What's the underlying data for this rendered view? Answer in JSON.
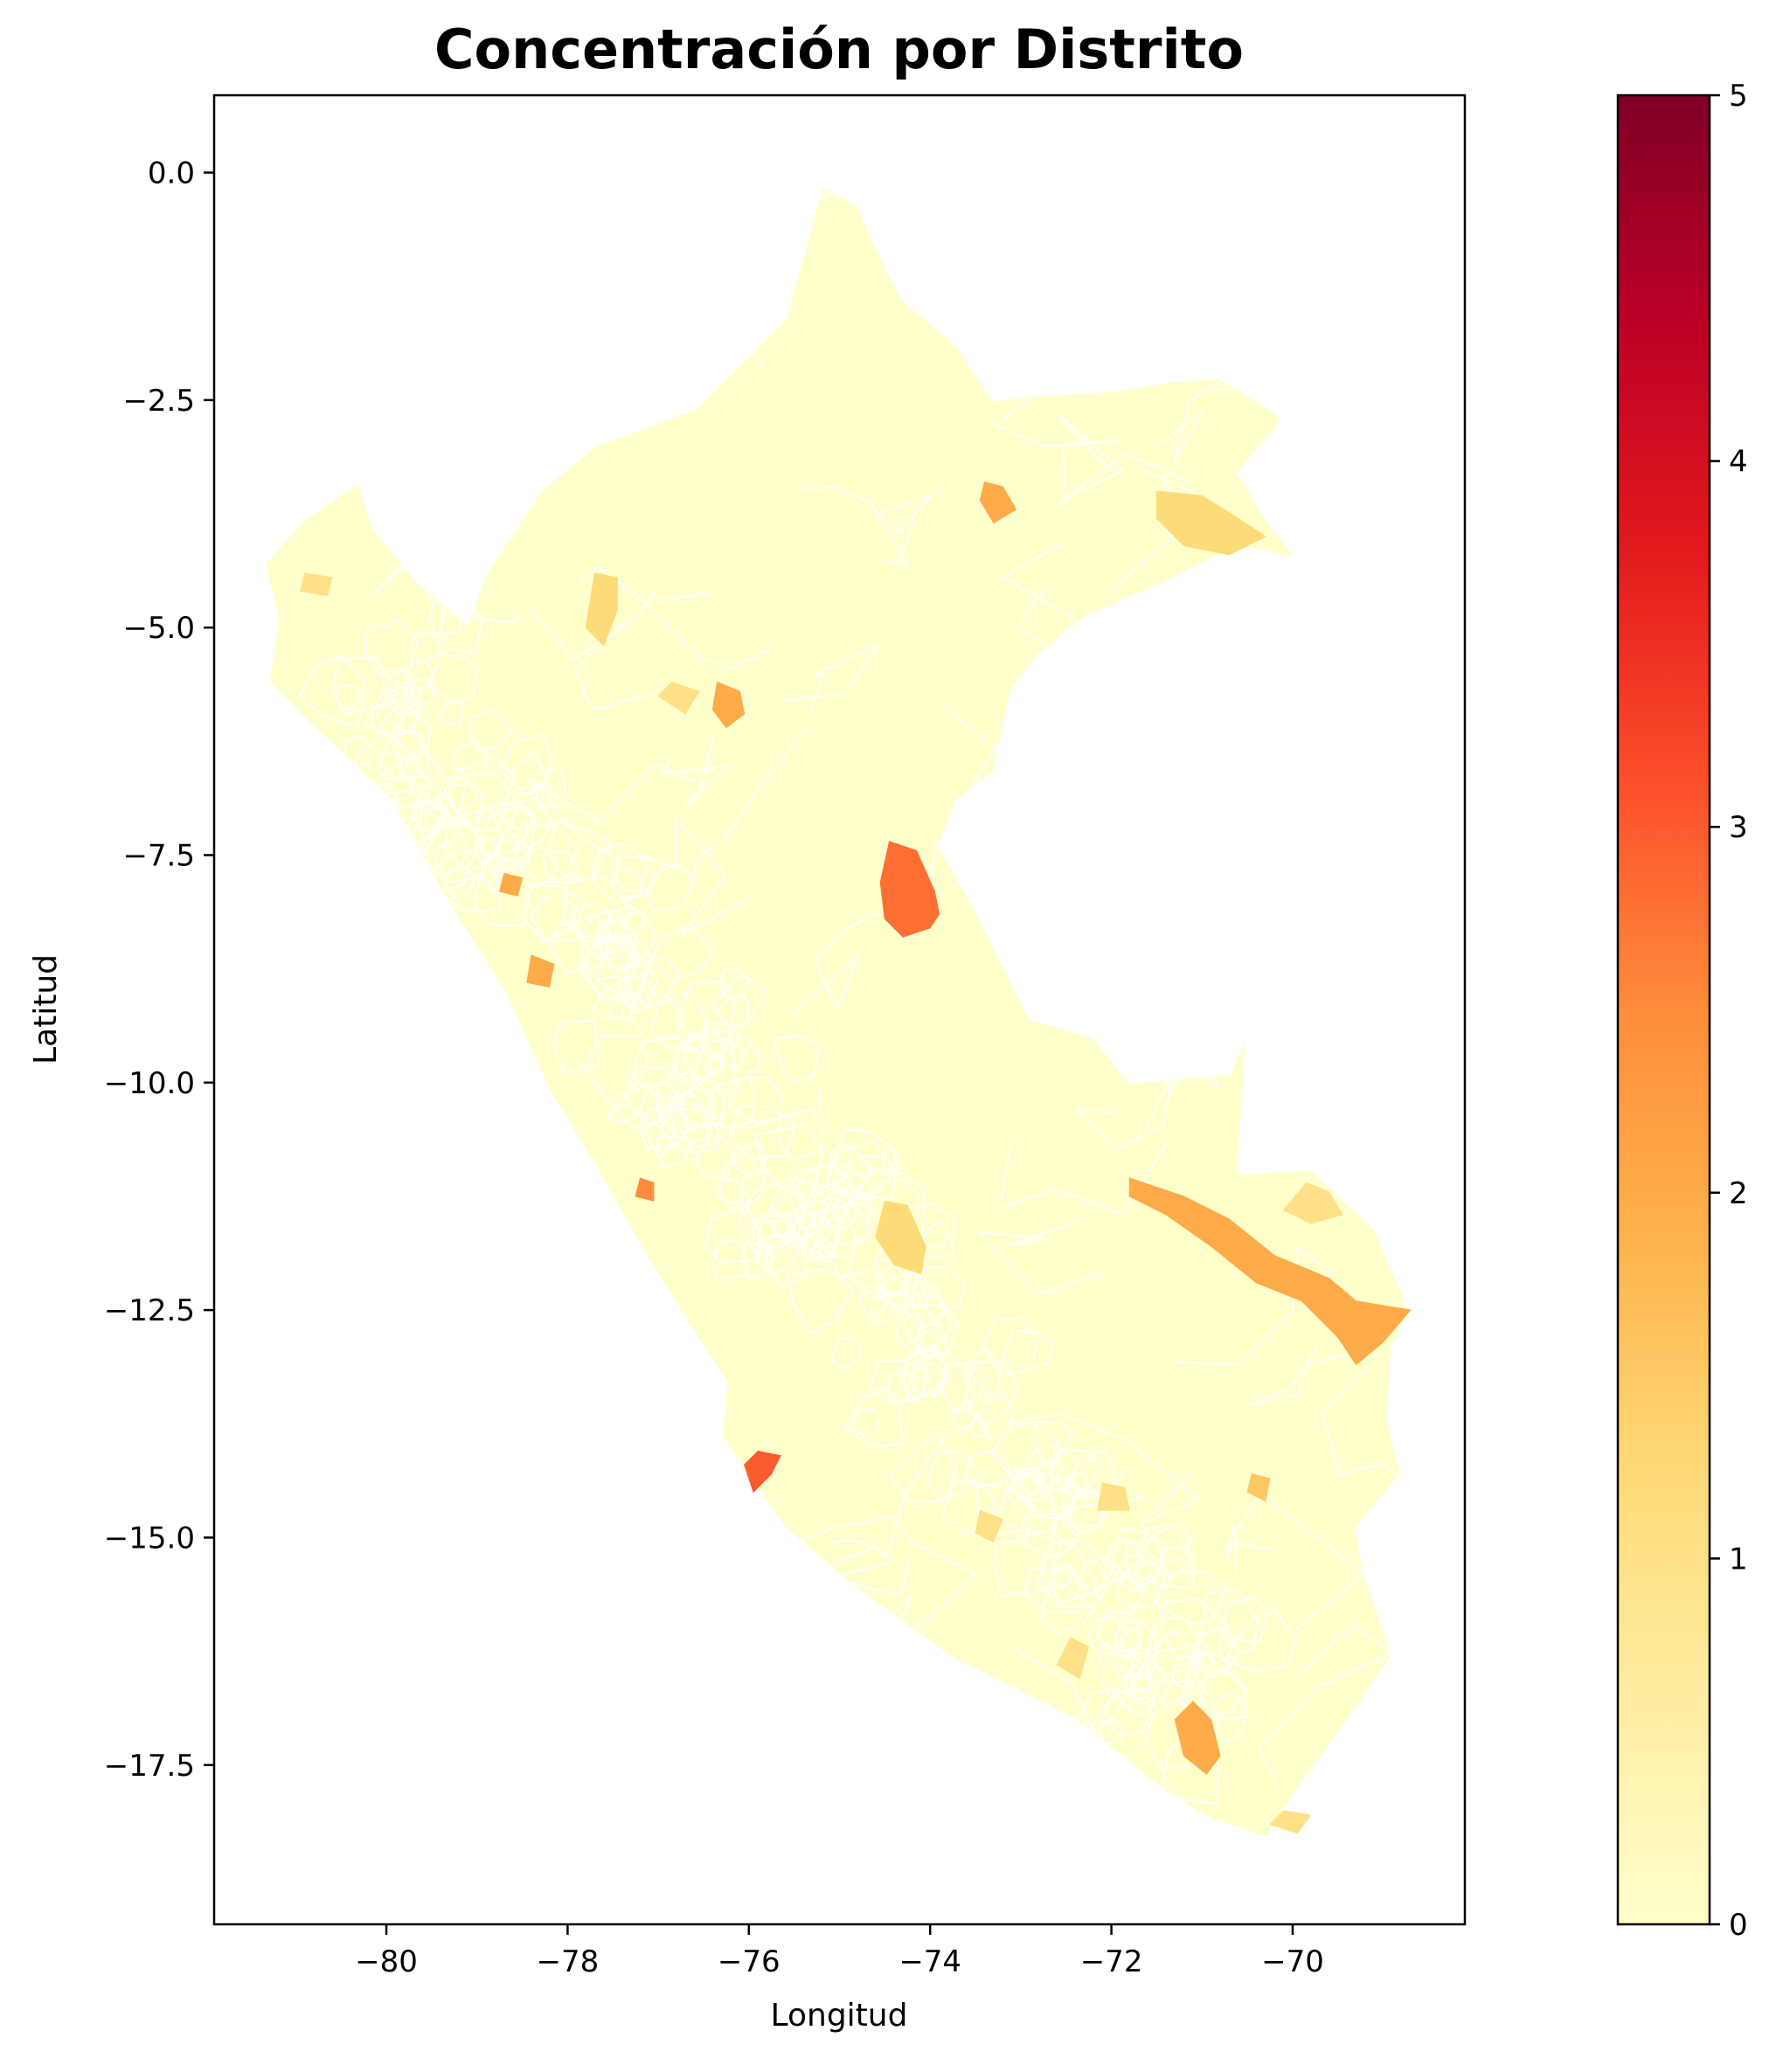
{
  "title": "Concentración por Distrito",
  "xlabel": "Longitud",
  "ylabel": "Latitud",
  "x_ticks": [
    {
      "value": -80,
      "label": "−80"
    },
    {
      "value": -78,
      "label": "−78"
    },
    {
      "value": -76,
      "label": "−76"
    },
    {
      "value": -74,
      "label": "−74"
    },
    {
      "value": -72,
      "label": "−72"
    },
    {
      "value": -70,
      "label": "−70"
    }
  ],
  "y_ticks": [
    {
      "value": 0.0,
      "label": "0.0"
    },
    {
      "value": -2.5,
      "label": "−2.5"
    },
    {
      "value": -5.0,
      "label": "−5.0"
    },
    {
      "value": -7.5,
      "label": "−7.5"
    },
    {
      "value": -10.0,
      "label": "−10.0"
    },
    {
      "value": -12.5,
      "label": "−12.5"
    },
    {
      "value": -15.0,
      "label": "−15.0"
    },
    {
      "value": -17.5,
      "label": "−17.5"
    }
  ],
  "colorbar": {
    "colormap": "YlOrRd",
    "range": [
      0,
      5
    ],
    "ticks": [
      {
        "value": 0,
        "label": "0"
      },
      {
        "value": 1,
        "label": "1"
      },
      {
        "value": 2,
        "label": "2"
      },
      {
        "value": 3,
        "label": "3"
      },
      {
        "value": 4,
        "label": "4"
      },
      {
        "value": 5,
        "label": "5"
      }
    ],
    "stops": [
      "#ffffcc",
      "#ffeda0",
      "#fed976",
      "#feb24c",
      "#fd8d3c",
      "#fc4e2a",
      "#e31a1c",
      "#bd0026",
      "#800026"
    ]
  },
  "map": {
    "base_color": "#ffffcc",
    "border_color": "#ffffff",
    "country_outline": [
      [
        -75.2,
        -0.15
      ],
      [
        -74.8,
        -0.35
      ],
      [
        -74.6,
        -0.8
      ],
      [
        -74.3,
        -1.4
      ],
      [
        -73.7,
        -1.9
      ],
      [
        -73.3,
        -2.5
      ],
      [
        -72.9,
        -2.45
      ],
      [
        -72.0,
        -2.4
      ],
      [
        -71.4,
        -2.3
      ],
      [
        -70.8,
        -2.25
      ],
      [
        -70.1,
        -2.7
      ],
      [
        -70.6,
        -3.3
      ],
      [
        -70.3,
        -3.8
      ],
      [
        -69.95,
        -4.25
      ],
      [
        -70.6,
        -4.1
      ],
      [
        -71.4,
        -4.5
      ],
      [
        -72.3,
        -4.9
      ],
      [
        -72.8,
        -5.3
      ],
      [
        -73.1,
        -5.7
      ],
      [
        -73.3,
        -6.6
      ],
      [
        -73.7,
        -6.9
      ],
      [
        -73.9,
        -7.4
      ],
      [
        -73.5,
        -8.1
      ],
      [
        -73.1,
        -8.9
      ],
      [
        -72.9,
        -9.3
      ],
      [
        -72.2,
        -9.5
      ],
      [
        -71.8,
        -10.0
      ],
      [
        -70.7,
        -9.9
      ],
      [
        -70.5,
        -9.45
      ],
      [
        -70.6,
        -11.0
      ],
      [
        -69.8,
        -10.95
      ],
      [
        -69.1,
        -11.6
      ],
      [
        -68.7,
        -12.5
      ],
      [
        -68.9,
        -12.9
      ],
      [
        -68.95,
        -13.7
      ],
      [
        -68.8,
        -14.3
      ],
      [
        -69.3,
        -14.9
      ],
      [
        -69.2,
        -15.4
      ],
      [
        -68.9,
        -16.3
      ],
      [
        -69.6,
        -17.3
      ],
      [
        -69.9,
        -17.7
      ],
      [
        -70.3,
        -18.3
      ],
      [
        -70.9,
        -18.1
      ],
      [
        -71.4,
        -17.8
      ],
      [
        -72.4,
        -17.0
      ],
      [
        -73.8,
        -16.3
      ],
      [
        -74.9,
        -15.5
      ],
      [
        -75.6,
        -14.9
      ],
      [
        -76.3,
        -13.9
      ],
      [
        -76.25,
        -13.3
      ],
      [
        -76.7,
        -12.6
      ],
      [
        -77.2,
        -11.8
      ],
      [
        -77.65,
        -11.0
      ],
      [
        -78.2,
        -10.1
      ],
      [
        -78.7,
        -9.0
      ],
      [
        -79.4,
        -7.9
      ],
      [
        -79.95,
        -6.9
      ],
      [
        -80.8,
        -6.1
      ],
      [
        -81.3,
        -5.6
      ],
      [
        -81.2,
        -4.9
      ],
      [
        -81.35,
        -4.3
      ],
      [
        -80.9,
        -3.8
      ],
      [
        -80.3,
        -3.4
      ],
      [
        -80.15,
        -3.9
      ],
      [
        -79.65,
        -4.5
      ],
      [
        -79.1,
        -4.95
      ],
      [
        -78.9,
        -4.4
      ],
      [
        -78.3,
        -3.5
      ],
      [
        -77.7,
        -3.0
      ],
      [
        -76.6,
        -2.6
      ],
      [
        -75.6,
        -1.6
      ],
      [
        -75.4,
        -0.9
      ]
    ],
    "highlighted_districts": [
      {
        "value": 2.8,
        "polygon": [
          [
            -74.45,
            -7.35
          ],
          [
            -74.15,
            -7.45
          ],
          [
            -73.95,
            -7.9
          ],
          [
            -73.9,
            -8.15
          ],
          [
            -74.0,
            -8.3
          ],
          [
            -74.3,
            -8.4
          ],
          [
            -74.5,
            -8.2
          ],
          [
            -74.55,
            -7.8
          ]
        ]
      },
      {
        "value": 2.0,
        "polygon": [
          [
            -71.8,
            -11.05
          ],
          [
            -71.2,
            -11.25
          ],
          [
            -70.7,
            -11.5
          ],
          [
            -70.2,
            -11.9
          ],
          [
            -69.6,
            -12.15
          ],
          [
            -69.3,
            -12.4
          ],
          [
            -68.7,
            -12.5
          ],
          [
            -69.0,
            -12.85
          ],
          [
            -69.3,
            -13.1
          ],
          [
            -69.5,
            -12.8
          ],
          [
            -69.9,
            -12.4
          ],
          [
            -70.4,
            -12.2
          ],
          [
            -70.9,
            -11.8
          ],
          [
            -71.4,
            -11.45
          ],
          [
            -71.8,
            -11.25
          ]
        ]
      },
      {
        "value": 2.0,
        "polygon": [
          [
            -76.35,
            -5.6
          ],
          [
            -76.1,
            -5.7
          ],
          [
            -76.05,
            -5.95
          ],
          [
            -76.25,
            -6.1
          ],
          [
            -76.4,
            -5.9
          ]
        ]
      },
      {
        "value": 2.0,
        "polygon": [
          [
            -73.4,
            -3.4
          ],
          [
            -73.2,
            -3.45
          ],
          [
            -73.05,
            -3.7
          ],
          [
            -73.3,
            -3.85
          ],
          [
            -73.45,
            -3.6
          ]
        ]
      },
      {
        "value": 2.0,
        "polygon": [
          [
            -71.1,
            -16.8
          ],
          [
            -70.9,
            -17.0
          ],
          [
            -70.8,
            -17.4
          ],
          [
            -70.95,
            -17.6
          ],
          [
            -71.2,
            -17.4
          ],
          [
            -71.3,
            -17.0
          ]
        ]
      },
      {
        "value": 2.0,
        "polygon": [
          [
            -78.4,
            -8.6
          ],
          [
            -78.15,
            -8.7
          ],
          [
            -78.2,
            -8.95
          ],
          [
            -78.45,
            -8.9
          ]
        ]
      },
      {
        "value": 1.2,
        "polygon": [
          [
            -71.5,
            -3.5
          ],
          [
            -71.0,
            -3.55
          ],
          [
            -70.6,
            -3.8
          ],
          [
            -70.3,
            -4.0
          ],
          [
            -70.7,
            -4.2
          ],
          [
            -71.2,
            -4.1
          ],
          [
            -71.5,
            -3.8
          ]
        ]
      },
      {
        "value": 1.2,
        "polygon": [
          [
            -77.7,
            -4.4
          ],
          [
            -77.45,
            -4.45
          ],
          [
            -77.45,
            -4.8
          ],
          [
            -77.6,
            -5.2
          ],
          [
            -77.8,
            -5.0
          ],
          [
            -77.75,
            -4.7
          ]
        ]
      },
      {
        "value": 1.2,
        "polygon": [
          [
            -74.5,
            -11.3
          ],
          [
            -74.25,
            -11.35
          ],
          [
            -74.05,
            -11.8
          ],
          [
            -74.1,
            -12.1
          ],
          [
            -74.4,
            -12.0
          ],
          [
            -74.6,
            -11.7
          ]
        ]
      },
      {
        "value": 1.0,
        "polygon": [
          [
            -69.85,
            -11.1
          ],
          [
            -69.6,
            -11.2
          ],
          [
            -69.45,
            -11.45
          ],
          [
            -69.8,
            -11.55
          ],
          [
            -70.1,
            -11.4
          ]
        ]
      },
      {
        "value": 1.0,
        "polygon": [
          [
            -72.1,
            -14.4
          ],
          [
            -71.85,
            -14.45
          ],
          [
            -71.8,
            -14.7
          ],
          [
            -72.15,
            -14.7
          ]
        ]
      },
      {
        "value": 1.0,
        "polygon": [
          [
            -72.45,
            -16.1
          ],
          [
            -72.25,
            -16.2
          ],
          [
            -72.35,
            -16.55
          ],
          [
            -72.6,
            -16.4
          ]
        ]
      },
      {
        "value": 1.0,
        "polygon": [
          [
            -70.1,
            -18.0
          ],
          [
            -69.8,
            -18.05
          ],
          [
            -69.95,
            -18.25
          ],
          [
            -70.25,
            -18.15
          ]
        ]
      },
      {
        "value": 1.0,
        "polygon": [
          [
            -80.9,
            -4.4
          ],
          [
            -80.6,
            -4.45
          ],
          [
            -80.65,
            -4.65
          ],
          [
            -80.95,
            -4.6
          ]
        ]
      },
      {
        "value": 1.0,
        "polygon": [
          [
            -73.45,
            -14.7
          ],
          [
            -73.2,
            -14.8
          ],
          [
            -73.3,
            -15.05
          ],
          [
            -73.5,
            -14.95
          ]
        ]
      },
      {
        "value": 3.0,
        "polygon": [
          [
            -75.9,
            -14.05
          ],
          [
            -75.65,
            -14.1
          ],
          [
            -75.75,
            -14.3
          ],
          [
            -75.95,
            -14.5
          ],
          [
            -76.05,
            -14.2
          ]
        ]
      },
      {
        "value": 2.5,
        "polygon": [
          [
            -77.2,
            -11.05
          ],
          [
            -77.05,
            -11.1
          ],
          [
            -77.05,
            -11.3
          ],
          [
            -77.25,
            -11.25
          ]
        ]
      },
      {
        "value": 2.0,
        "polygon": [
          [
            -78.7,
            -7.7
          ],
          [
            -78.5,
            -7.75
          ],
          [
            -78.55,
            -7.95
          ],
          [
            -78.75,
            -7.9
          ]
        ]
      },
      {
        "value": 1.0,
        "polygon": [
          [
            -76.85,
            -5.6
          ],
          [
            -76.55,
            -5.7
          ],
          [
            -76.7,
            -5.95
          ],
          [
            -77.0,
            -5.75
          ]
        ]
      },
      {
        "value": 1.5,
        "polygon": [
          [
            -70.45,
            -14.3
          ],
          [
            -70.25,
            -14.35
          ],
          [
            -70.3,
            -14.6
          ],
          [
            -70.5,
            -14.5
          ]
        ]
      }
    ]
  }
}
